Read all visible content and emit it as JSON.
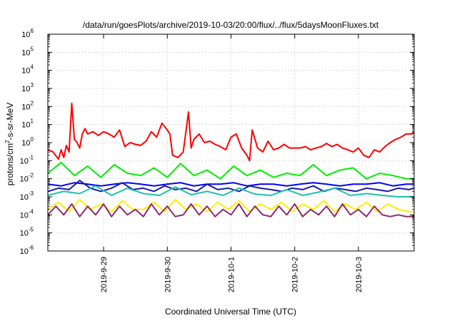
{
  "chart_data": {
    "type": "line",
    "title": "/data/run/goesPlots/archive/2019-10-03/20:00/flux/../flux/5daysMoonFluxes.txt",
    "xlabel": "Coordinated Universal Time (UTC)",
    "ylabel": "protons/cm2-s-sr-MeV",
    "y_scale": "log",
    "ylim": [
      1e-06,
      1000000.0
    ],
    "xlim": [
      "2019-09-28 03:00",
      "2019-10-03 21:00"
    ],
    "grid": true,
    "legend": "none",
    "y_ticks": [
      {
        "base": "10",
        "exp": "-6"
      },
      {
        "base": "10",
        "exp": "-5"
      },
      {
        "base": "10",
        "exp": "-4"
      },
      {
        "base": "10",
        "exp": "-3"
      },
      {
        "base": "10",
        "exp": "-2"
      },
      {
        "base": "10",
        "exp": "-1"
      },
      {
        "base": "10",
        "exp": "0"
      },
      {
        "base": "10",
        "exp": "1"
      },
      {
        "base": "10",
        "exp": "2"
      },
      {
        "base": "10",
        "exp": "3"
      },
      {
        "base": "10",
        "exp": "4"
      },
      {
        "base": "10",
        "exp": "5"
      },
      {
        "base": "10",
        "exp": "6"
      }
    ],
    "x_ticks": [
      "2019-9-29",
      "2019-9-30",
      "2019-10-1",
      "2019-10-2",
      "2019-10-3"
    ],
    "series": [
      {
        "color": "#ff0000",
        "width": 2,
        "x": [
          "2019-09-28 03:00",
          "2019-09-28 05:00",
          "2019-09-28 07:00",
          "2019-09-28 08:00",
          "2019-09-28 09:00",
          "2019-09-28 10:00",
          "2019-09-28 11:00",
          "2019-09-28 12:00",
          "2019-09-28 13:00",
          "2019-09-28 14:00",
          "2019-09-28 15:00",
          "2019-09-28 16:00",
          "2019-09-28 17:00",
          "2019-09-28 18:00",
          "2019-09-28 20:00",
          "2019-09-28 22:00",
          "2019-09-29 00:00",
          "2019-09-29 02:00",
          "2019-09-29 04:00",
          "2019-09-29 06:00",
          "2019-09-29 08:00",
          "2019-09-29 10:00",
          "2019-09-29 12:00",
          "2019-09-29 14:00",
          "2019-09-29 16:00",
          "2019-09-29 18:00",
          "2019-09-29 20:00",
          "2019-09-29 22:00",
          "2019-09-30 00:00",
          "2019-09-30 01:00",
          "2019-09-30 02:00",
          "2019-09-30 04:00",
          "2019-09-30 06:00",
          "2019-09-30 08:00",
          "2019-09-30 09:00",
          "2019-09-30 10:00",
          "2019-09-30 12:00",
          "2019-09-30 14:00",
          "2019-09-30 16:00",
          "2019-09-30 18:00",
          "2019-09-30 20:00",
          "2019-09-30 22:00",
          "2019-10-01 00:00",
          "2019-10-01 02:00",
          "2019-10-01 04:00",
          "2019-10-01 06:00",
          "2019-10-01 07:00",
          "2019-10-01 08:00",
          "2019-10-01 10:00",
          "2019-10-01 12:00",
          "2019-10-01 14:00",
          "2019-10-01 16:00",
          "2019-10-01 18:00",
          "2019-10-01 20:00",
          "2019-10-01 22:00",
          "2019-10-02 00:00",
          "2019-10-02 02:00",
          "2019-10-02 04:00",
          "2019-10-02 06:00",
          "2019-10-02 08:00",
          "2019-10-02 10:00",
          "2019-10-02 12:00",
          "2019-10-02 14:00",
          "2019-10-02 16:00",
          "2019-10-02 18:00",
          "2019-10-02 20:00",
          "2019-10-02 22:00",
          "2019-10-03 00:00",
          "2019-10-03 02:00",
          "2019-10-03 04:00",
          "2019-10-03 06:00",
          "2019-10-03 08:00",
          "2019-10-03 10:00",
          "2019-10-03 12:00",
          "2019-10-03 14:00",
          "2019-10-03 16:00",
          "2019-10-03 18:00",
          "2019-10-03 20:00",
          "2019-10-03 21:00"
        ],
        "values": [
          0.4,
          0.3,
          0.12,
          0.4,
          0.15,
          0.7,
          0.3,
          150,
          1.5,
          1.0,
          0.5,
          3.0,
          6.0,
          3.0,
          4.0,
          2.5,
          4.0,
          3.0,
          2.0,
          5.0,
          0.6,
          1.0,
          0.8,
          0.7,
          1.2,
          4.0,
          2.0,
          12.0,
          5.0,
          3.0,
          0.2,
          0.15,
          0.3,
          50,
          0.5,
          1.5,
          3.0,
          1.0,
          1.2,
          0.8,
          0.6,
          0.4,
          2.0,
          3.0,
          0.5,
          0.2,
          0.1,
          5.0,
          0.5,
          0.3,
          1.2,
          0.4,
          0.5,
          0.8,
          0.5,
          0.5,
          0.5,
          0.6,
          0.4,
          0.5,
          0.6,
          0.9,
          0.6,
          0.8,
          0.5,
          0.4,
          0.3,
          0.5,
          0.2,
          0.15,
          0.4,
          0.3,
          0.6,
          1.0,
          1.5,
          2.0,
          3.0,
          3.0,
          4.0
        ]
      },
      {
        "color": "#00ee00",
        "width": 2,
        "x": [
          "2019-09-28 03:00",
          "2019-09-28 08:00",
          "2019-09-28 13:00",
          "2019-09-28 18:00",
          "2019-09-28 23:00",
          "2019-09-29 04:00",
          "2019-09-29 09:00",
          "2019-09-29 14:00",
          "2019-09-29 19:00",
          "2019-09-30 00:00",
          "2019-09-30 05:00",
          "2019-09-30 10:00",
          "2019-09-30 15:00",
          "2019-09-30 20:00",
          "2019-10-01 01:00",
          "2019-10-01 06:00",
          "2019-10-01 11:00",
          "2019-10-01 16:00",
          "2019-10-01 21:00",
          "2019-10-02 02:00",
          "2019-10-02 07:00",
          "2019-10-02 12:00",
          "2019-10-02 17:00",
          "2019-10-02 22:00",
          "2019-10-03 03:00",
          "2019-10-03 08:00",
          "2019-10-03 13:00",
          "2019-10-03 18:00",
          "2019-10-03 21:00"
        ],
        "values": [
          0.02,
          0.08,
          0.015,
          0.05,
          0.012,
          0.06,
          0.02,
          0.015,
          0.04,
          0.012,
          0.07,
          0.015,
          0.03,
          0.01,
          0.05,
          0.015,
          0.03,
          0.012,
          0.02,
          0.015,
          0.06,
          0.015,
          0.03,
          0.04,
          0.01,
          0.02,
          0.015,
          0.01,
          0.01
        ]
      },
      {
        "color": "#0000ff",
        "width": 2,
        "x": [
          "2019-09-28 03:00",
          "2019-09-28 08:00",
          "2019-09-28 13:00",
          "2019-09-28 18:00",
          "2019-09-28 23:00",
          "2019-09-29 04:00",
          "2019-09-29 09:00",
          "2019-09-29 14:00",
          "2019-09-29 19:00",
          "2019-09-30 00:00",
          "2019-09-30 05:00",
          "2019-09-30 10:00",
          "2019-09-30 15:00",
          "2019-09-30 20:00",
          "2019-10-01 01:00",
          "2019-10-01 06:00",
          "2019-10-01 11:00",
          "2019-10-01 16:00",
          "2019-10-01 21:00",
          "2019-10-02 02:00",
          "2019-10-02 07:00",
          "2019-10-02 12:00",
          "2019-10-02 17:00",
          "2019-10-02 22:00",
          "2019-10-03 03:00",
          "2019-10-03 08:00",
          "2019-10-03 13:00",
          "2019-10-03 18:00",
          "2019-10-03 21:00"
        ],
        "values": [
          0.005,
          0.004,
          0.006,
          0.005,
          0.004,
          0.005,
          0.006,
          0.005,
          0.004,
          0.005,
          0.006,
          0.004,
          0.005,
          0.005,
          0.006,
          0.004,
          0.005,
          0.005,
          0.004,
          0.005,
          0.006,
          0.005,
          0.004,
          0.005,
          0.005,
          0.006,
          0.004,
          0.005,
          0.005
        ]
      },
      {
        "color": "#1a1aaa",
        "width": 2,
        "x": [
          "2019-09-28 03:00",
          "2019-09-28 07:00",
          "2019-09-28 11:00",
          "2019-09-28 15:00",
          "2019-09-28 19:00",
          "2019-09-28 23:00",
          "2019-09-29 03:00",
          "2019-09-29 07:00",
          "2019-09-29 11:00",
          "2019-09-29 15:00",
          "2019-09-29 19:00",
          "2019-09-29 23:00",
          "2019-09-30 03:00",
          "2019-09-30 07:00",
          "2019-09-30 11:00",
          "2019-09-30 15:00",
          "2019-09-30 19:00",
          "2019-09-30 23:00",
          "2019-10-01 03:00",
          "2019-10-01 07:00",
          "2019-10-01 11:00",
          "2019-10-01 15:00",
          "2019-10-01 19:00",
          "2019-10-01 23:00",
          "2019-10-02 03:00",
          "2019-10-02 07:00",
          "2019-10-02 11:00",
          "2019-10-02 15:00",
          "2019-10-02 19:00",
          "2019-10-02 23:00",
          "2019-10-03 03:00",
          "2019-10-03 07:00",
          "2019-10-03 11:00",
          "2019-10-03 15:00",
          "2019-10-03 19:00",
          "2019-10-03 21:00"
        ],
        "values": [
          0.002,
          0.003,
          0.0025,
          0.008,
          0.003,
          0.002,
          0.003,
          0.006,
          0.0025,
          0.003,
          0.002,
          0.004,
          0.0025,
          0.003,
          0.002,
          0.005,
          0.0025,
          0.003,
          0.002,
          0.004,
          0.003,
          0.0025,
          0.002,
          0.003,
          0.0025,
          0.004,
          0.002,
          0.003,
          0.0025,
          0.002,
          0.003,
          0.0025,
          0.002,
          0.003,
          0.0025,
          0.003
        ]
      },
      {
        "color": "#20c0b0",
        "width": 2,
        "x": [
          "2019-09-28 03:00",
          "2019-09-28 09:00",
          "2019-09-28 15:00",
          "2019-09-28 21:00",
          "2019-09-29 03:00",
          "2019-09-29 09:00",
          "2019-09-29 15:00",
          "2019-09-29 21:00",
          "2019-09-30 03:00",
          "2019-09-30 09:00",
          "2019-09-30 15:00",
          "2019-09-30 21:00",
          "2019-10-01 03:00",
          "2019-10-01 09:00",
          "2019-10-01 15:00",
          "2019-10-01 21:00",
          "2019-10-02 03:00",
          "2019-10-02 09:00",
          "2019-10-02 15:00",
          "2019-10-02 21:00",
          "2019-10-03 03:00",
          "2019-10-03 09:00",
          "2019-10-03 15:00",
          "2019-10-03 21:00"
        ],
        "values": [
          0.0012,
          0.002,
          0.0015,
          0.004,
          0.0012,
          0.003,
          0.0015,
          0.0012,
          0.0035,
          0.0013,
          0.002,
          0.0012,
          0.003,
          0.0014,
          0.0012,
          0.0025,
          0.0012,
          0.0018,
          0.003,
          0.0012,
          0.0015,
          0.0012,
          0.001,
          0.001
        ]
      },
      {
        "color": "#ffee00",
        "width": 2,
        "x": [
          "2019-09-28 03:00",
          "2019-09-28 07:00",
          "2019-09-28 11:00",
          "2019-09-28 15:00",
          "2019-09-28 19:00",
          "2019-09-28 23:00",
          "2019-09-29 03:00",
          "2019-09-29 07:00",
          "2019-09-29 11:00",
          "2019-09-29 15:00",
          "2019-09-29 19:00",
          "2019-09-29 23:00",
          "2019-09-30 03:00",
          "2019-09-30 07:00",
          "2019-09-30 11:00",
          "2019-09-30 15:00",
          "2019-09-30 19:00",
          "2019-09-30 23:00",
          "2019-10-01 03:00",
          "2019-10-01 07:00",
          "2019-10-01 11:00",
          "2019-10-01 15:00",
          "2019-10-01 19:00",
          "2019-10-01 23:00",
          "2019-10-02 03:00",
          "2019-10-02 07:00",
          "2019-10-02 11:00",
          "2019-10-02 15:00",
          "2019-10-02 19:00",
          "2019-10-02 23:00",
          "2019-10-03 03:00",
          "2019-10-03 07:00",
          "2019-10-03 11:00",
          "2019-10-03 15:00",
          "2019-10-03 19:00",
          "2019-10-03 21:00"
        ],
        "values": [
          0.0002,
          0.0005,
          0.00015,
          0.0007,
          0.0002,
          0.0004,
          0.00015,
          0.0006,
          0.0002,
          0.0002,
          0.0005,
          0.00015,
          0.0007,
          0.0002,
          0.0004,
          0.00015,
          0.0005,
          0.0002,
          0.0006,
          0.00015,
          0.0004,
          0.0002,
          0.0005,
          0.00015,
          0.0004,
          0.0002,
          0.0006,
          0.00015,
          0.0004,
          0.0002,
          0.0005,
          0.00015,
          0.0004,
          0.0002,
          0.00015,
          0.00015
        ]
      },
      {
        "color": "#8b2b70",
        "width": 2,
        "x": [
          "2019-09-28 03:00",
          "2019-09-28 06:00",
          "2019-09-28 09:00",
          "2019-09-28 12:00",
          "2019-09-28 15:00",
          "2019-09-28 18:00",
          "2019-09-28 21:00",
          "2019-09-29 00:00",
          "2019-09-29 03:00",
          "2019-09-29 06:00",
          "2019-09-29 09:00",
          "2019-09-29 12:00",
          "2019-09-29 15:00",
          "2019-09-29 18:00",
          "2019-09-29 21:00",
          "2019-09-30 00:00",
          "2019-09-30 03:00",
          "2019-09-30 06:00",
          "2019-09-30 09:00",
          "2019-09-30 12:00",
          "2019-09-30 15:00",
          "2019-09-30 18:00",
          "2019-09-30 21:00",
          "2019-10-01 00:00",
          "2019-10-01 03:00",
          "2019-10-01 06:00",
          "2019-10-01 09:00",
          "2019-10-01 12:00",
          "2019-10-01 15:00",
          "2019-10-01 18:00",
          "2019-10-01 21:00",
          "2019-10-02 00:00",
          "2019-10-02 03:00",
          "2019-10-02 06:00",
          "2019-10-02 09:00",
          "2019-10-02 12:00",
          "2019-10-02 15:00",
          "2019-10-02 18:00",
          "2019-10-02 21:00",
          "2019-10-03 00:00",
          "2019-10-03 03:00",
          "2019-10-03 06:00",
          "2019-10-03 09:00",
          "2019-10-03 12:00",
          "2019-10-03 15:00",
          "2019-10-03 18:00",
          "2019-10-03 21:00"
        ],
        "values": [
          0.0001,
          0.0003,
          0.0001,
          0.0004,
          8e-05,
          0.0003,
          0.0001,
          0.0004,
          8e-05,
          0.0003,
          0.0001,
          0.0002,
          8e-05,
          0.0004,
          0.0001,
          0.0003,
          8e-05,
          0.0001,
          0.0004,
          0.0001,
          0.0003,
          8e-05,
          0.0002,
          0.0001,
          0.0004,
          8e-05,
          0.0003,
          0.0001,
          8e-05,
          0.0003,
          0.0001,
          0.0004,
          8e-05,
          0.0002,
          0.0001,
          0.0003,
          8e-05,
          0.0004,
          0.0001,
          0.0002,
          8e-05,
          0.0003,
          0.0001,
          8e-05,
          0.0001,
          8e-05,
          8e-05
        ]
      }
    ]
  }
}
